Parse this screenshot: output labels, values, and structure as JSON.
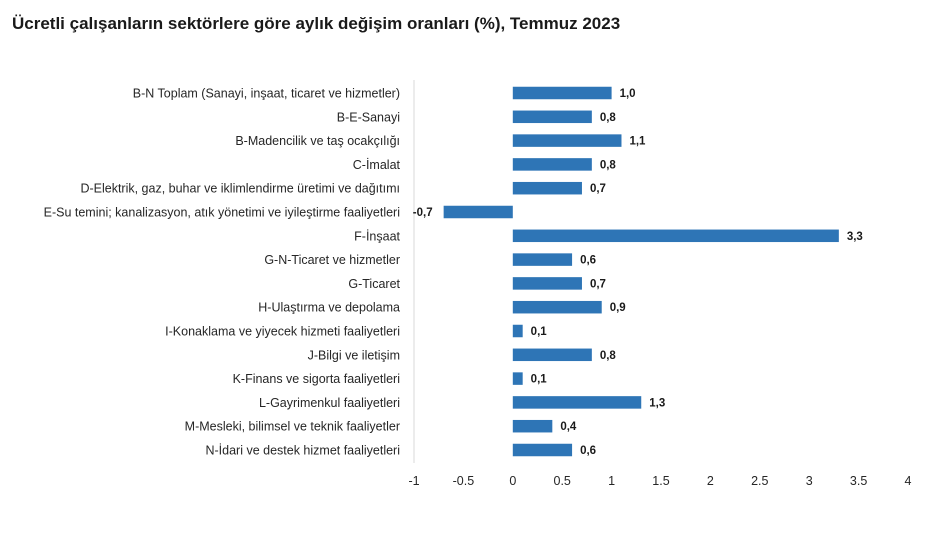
{
  "chart_data": {
    "type": "bar",
    "orientation": "horizontal",
    "title": "Ücretli çalışanların sektörlere göre aylık değişim oranları (%), Temmuz 2023",
    "categories": [
      "B-N Toplam (Sanayi, inşaat, ticaret ve hizmetler)",
      "B-E-Sanayi",
      "B-Madencilik ve taş ocakçılığı",
      "C-İmalat",
      "D-Elektrik, gaz, buhar ve iklimlendirme üretimi ve dağıtımı",
      "E-Su temini; kanalizasyon, atık yönetimi ve iyileştirme faaliyetleri",
      "F-İnşaat",
      "G-N-Ticaret ve hizmetler",
      "G-Ticaret",
      "H-Ulaştırma ve depolama",
      "I-Konaklama ve yiyecek hizmeti faaliyetleri",
      "J-Bilgi ve iletişim",
      "K-Finans ve sigorta faaliyetleri",
      "L-Gayrimenkul faaliyetleri",
      "M-Mesleki, bilimsel ve teknik faaliyetler",
      "N-İdari ve destek hizmet faaliyetleri"
    ],
    "values": [
      1.0,
      0.8,
      1.1,
      0.8,
      0.7,
      -0.7,
      3.3,
      0.6,
      0.7,
      0.9,
      0.1,
      0.8,
      0.1,
      1.3,
      0.4,
      0.6
    ],
    "data_labels": [
      "1,0",
      "0,8",
      "1,1",
      "0,8",
      "0,7",
      "-0,7",
      "3,3",
      "0,6",
      "0,7",
      "0,9",
      "0,1",
      "0,8",
      "0,1",
      "1,3",
      "0,4",
      "0,6"
    ],
    "xlim": [
      -1,
      4
    ],
    "x_ticks": [
      -1,
      -0.5,
      0,
      0.5,
      1,
      1.5,
      2,
      2.5,
      3,
      3.5,
      4
    ],
    "x_tick_labels": [
      "-1",
      "-0.5",
      "0",
      "0.5",
      "1",
      "1.5",
      "2",
      "2.5",
      "3",
      "3.5",
      "4"
    ],
    "xlabel": "",
    "ylabel": "",
    "grid": false,
    "legend": "none",
    "bar_color": "#2e75b6",
    "axis_color": "#d9d9d9"
  }
}
